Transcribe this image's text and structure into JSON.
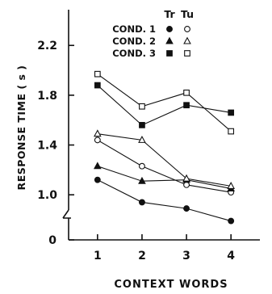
{
  "chart_data": {
    "type": "line",
    "xlabel": "CONTEXT WORDS",
    "ylabel": "RESPONSE TIME ( s )",
    "x": [
      1,
      2,
      3,
      4
    ],
    "xlim": [
      0.35,
      4.65
    ],
    "ylim": [
      0.8,
      2.5
    ],
    "yticks": [
      {
        "value": 1.0,
        "label": "1.0"
      },
      {
        "value": 1.4,
        "label": "1.4"
      },
      {
        "value": 1.8,
        "label": "1.8"
      },
      {
        "value": 2.2,
        "label": "2.2"
      }
    ],
    "zero_tick": "0",
    "axis_break": true,
    "grid": false,
    "legend": {
      "placement": "top-right",
      "column_headers": [
        "Tr",
        "Tu"
      ],
      "rows": [
        "COND. 1",
        "COND. 2",
        "COND. 3"
      ]
    },
    "series": [
      {
        "name": "COND. 1 Tr",
        "cond": 0,
        "marker": "circle",
        "filled": true,
        "values": [
          1.12,
          0.94,
          0.89,
          0.79
        ]
      },
      {
        "name": "COND. 1 Tu",
        "cond": 0,
        "marker": "circle",
        "filled": false,
        "values": [
          1.44,
          1.23,
          1.08,
          1.02
        ]
      },
      {
        "name": "COND. 2 Tr",
        "cond": 1,
        "marker": "triangle",
        "filled": true,
        "values": [
          1.23,
          1.11,
          1.12,
          1.05
        ]
      },
      {
        "name": "COND. 2 Tu",
        "cond": 1,
        "marker": "triangle",
        "filled": false,
        "values": [
          1.49,
          1.44,
          1.13,
          1.07
        ]
      },
      {
        "name": "COND. 3 Tr",
        "cond": 2,
        "marker": "square",
        "filled": true,
        "values": [
          1.88,
          1.56,
          1.72,
          1.66
        ]
      },
      {
        "name": "COND. 3 Tu",
        "cond": 2,
        "marker": "square",
        "filled": false,
        "values": [
          1.97,
          1.71,
          1.82,
          1.51
        ]
      }
    ]
  }
}
